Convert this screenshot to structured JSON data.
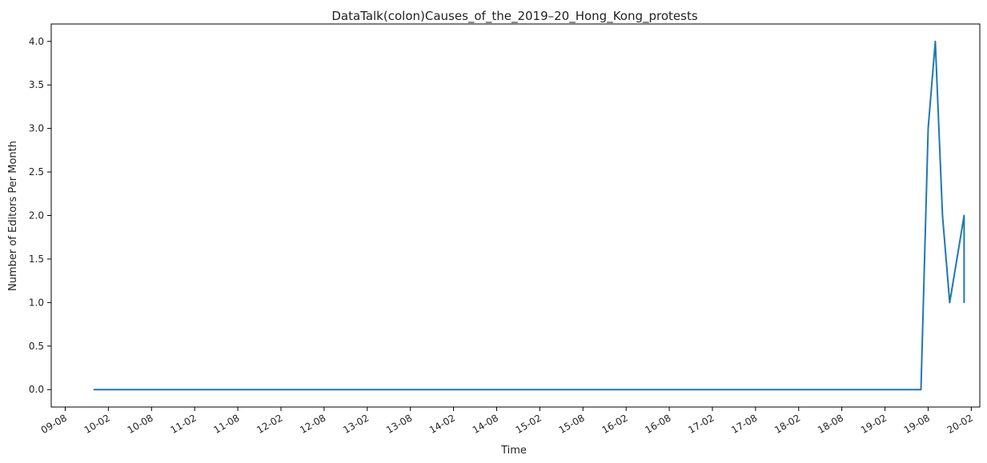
{
  "chart_data": {
    "type": "line",
    "title": "DataTalk(colon)Causes_of_the_2019–20_Hong_Kong_protests",
    "xlabel": "Time",
    "ylabel": "Number of Editors Per Month",
    "x_tick_labels": [
      "09-08",
      "10-02",
      "10-08",
      "11-02",
      "11-08",
      "12-02",
      "12-08",
      "13-02",
      "13-08",
      "14-02",
      "14-08",
      "15-02",
      "15-08",
      "16-02",
      "16-08",
      "17-02",
      "17-08",
      "18-02",
      "18-08",
      "19-02",
      "19-08",
      "20-02"
    ],
    "y_tick_labels": [
      "0.0",
      "0.5",
      "1.0",
      "1.5",
      "2.0",
      "2.5",
      "3.0",
      "3.5",
      "4.0"
    ],
    "ylim": [
      -0.2,
      4.2
    ],
    "grid": false,
    "color": "#1f77b4",
    "series": [
      {
        "x": [
          "2009-12",
          "2019-07",
          "2019-08",
          "2019-09",
          "2019-10",
          "2019-11",
          "2019-12",
          "2020-01",
          "2020-01"
        ],
        "values": [
          0,
          0,
          3,
          4,
          2,
          1,
          1.5,
          2,
          1
        ]
      }
    ]
  }
}
